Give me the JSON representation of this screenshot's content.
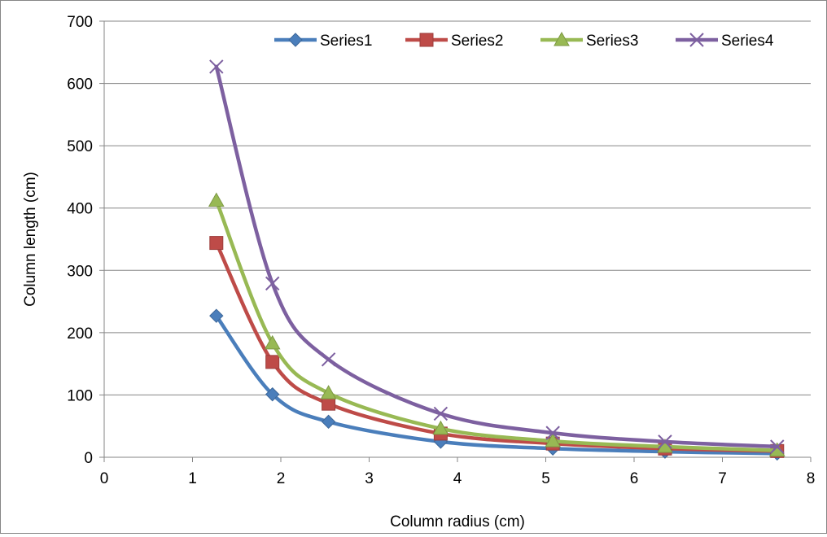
{
  "chart_data": {
    "type": "scatter",
    "title": "",
    "xlabel": "Column radius (cm)",
    "ylabel": "Column length (cm)",
    "xlim": [
      0,
      8
    ],
    "ylim": [
      0,
      700
    ],
    "x_ticks": [
      0,
      1,
      2,
      3,
      4,
      5,
      6,
      7,
      8
    ],
    "y_ticks": [
      0,
      100,
      200,
      300,
      400,
      500,
      600,
      700
    ],
    "x_tick_labels": [
      "0",
      "1",
      "2",
      "3",
      "4",
      "5",
      "6",
      "7",
      "8"
    ],
    "y_tick_labels": [
      "0",
      "100",
      "200",
      "300",
      "400",
      "500",
      "600",
      "700"
    ],
    "grid": "horizontal major gridlines",
    "legend_position": "top",
    "smoothed_lines": true,
    "x": [
      1.27,
      1.905,
      2.54,
      3.81,
      5.08,
      6.35,
      7.62
    ],
    "series": [
      {
        "name": "Series1",
        "color": "#4A7EBB",
        "marker": "diamond",
        "values": [
          227,
          101,
          57,
          25,
          14,
          9,
          6
        ]
      },
      {
        "name": "Series2",
        "color": "#BE4B48",
        "marker": "square",
        "values": [
          344,
          153,
          86,
          38,
          22,
          14,
          10
        ]
      },
      {
        "name": "Series3",
        "color": "#98B954",
        "marker": "triangle",
        "values": [
          412,
          183,
          103,
          46,
          26,
          17,
          11
        ]
      },
      {
        "name": "Series4",
        "color": "#7D60A0",
        "marker": "x",
        "values": [
          627,
          279,
          157,
          70,
          39,
          25,
          17
        ]
      }
    ]
  }
}
